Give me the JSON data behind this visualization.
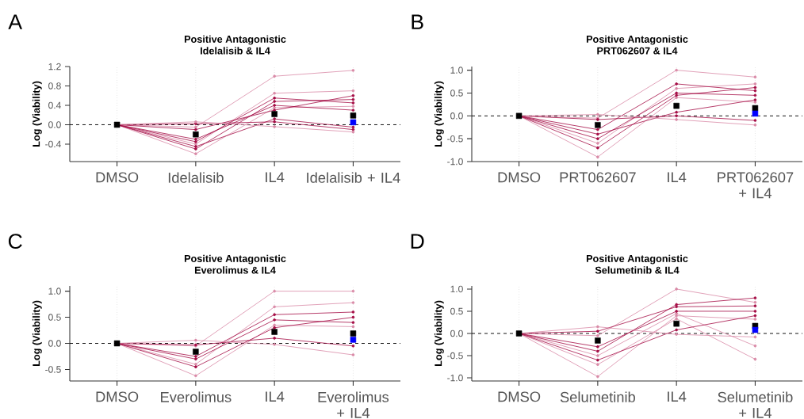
{
  "chart_data": [
    {
      "type": "line",
      "title": "Positive Antagonistic",
      "subtitle": "Idelalisib & IL4",
      "ylabel": "Log (Viability)",
      "annotations": [
        "A"
      ],
      "categories": [
        "DMSO",
        "Idelalisib",
        "IL4",
        "Idelalisib + IL4"
      ],
      "ylim": [
        -0.76,
        1.2
      ],
      "yticks": [
        {
          "value": -0.4,
          "label": "-0.4"
        },
        {
          "value": 0,
          "label": "0.0"
        },
        {
          "value": 0.4,
          "label": "0.4"
        },
        {
          "value": 0.8,
          "label": "0.8"
        },
        {
          "value": 1.2,
          "label": "1.2"
        }
      ],
      "grid": "x",
      "marker": "circle",
      "line_style": "solid",
      "ref_lines": [
        {
          "axis": "y",
          "value": 0,
          "color": "#000000",
          "line_style": "dashed"
        }
      ],
      "series": [
        {
          "color": "#d98aa7",
          "values": [
            0,
            -0.05,
            1.0,
            1.12
          ]
        },
        {
          "color": "#d98aa7",
          "values": [
            0,
            -0.6,
            0.35,
            0.38
          ]
        },
        {
          "color": "#d98aa7",
          "values": [
            0,
            -0.4,
            0.65,
            0.7
          ]
        },
        {
          "color": "#a50d45",
          "values": [
            0,
            -0.35,
            0.55,
            0.45
          ]
        },
        {
          "color": "#a50d45",
          "values": [
            0,
            -0.3,
            0.4,
            0.3
          ]
        },
        {
          "color": "#a50d45",
          "values": [
            0,
            -0.1,
            0.3,
            0.6
          ]
        },
        {
          "color": "#a50d45",
          "values": [
            0,
            -0.45,
            0.12,
            -0.05
          ]
        },
        {
          "color": "#a50d45",
          "values": [
            0,
            0.02,
            0.06,
            -0.1
          ]
        },
        {
          "color": "#a50d45",
          "values": [
            0,
            -0.5,
            0.48,
            0.52
          ]
        },
        {
          "color": "#d98aa7",
          "values": [
            0,
            0.06,
            -0.04,
            -0.15
          ]
        },
        {
          "type": "scatter",
          "marker": "square",
          "color": "#000000",
          "values": [
            0,
            -0.2,
            0.22,
            0.19
          ]
        },
        {
          "type": "scatter",
          "marker": "square",
          "color": "#0000ff",
          "values": [
            null,
            null,
            null,
            0.05
          ]
        }
      ]
    },
    {
      "type": "line",
      "title": "Positive Antagonistic",
      "subtitle": "PRT062607 & IL4",
      "ylabel": "Log (Viability)",
      "annotations": [
        "B"
      ],
      "categories": [
        "DMSO",
        "PRT062607",
        "IL4",
        "PRT062607 + IL4"
      ],
      "ylim": [
        -1.0,
        1.08
      ],
      "yticks": [
        {
          "value": -1,
          "label": "-1.0"
        },
        {
          "value": -0.5,
          "label": "-0.5"
        },
        {
          "value": 0,
          "label": "0.0"
        },
        {
          "value": 0.5,
          "label": "0.5"
        },
        {
          "value": 1,
          "label": "1.0"
        }
      ],
      "grid": "x",
      "marker": "circle",
      "line_style": "solid",
      "ref_lines": [
        {
          "axis": "y",
          "value": 0,
          "color": "#000000",
          "line_style": "dashed"
        }
      ],
      "series": [
        {
          "color": "#d98aa7",
          "values": [
            0,
            -0.05,
            1.0,
            0.85
          ]
        },
        {
          "color": "#d98aa7",
          "values": [
            0,
            -0.9,
            0.4,
            0.3
          ]
        },
        {
          "color": "#d98aa7",
          "values": [
            0,
            -0.6,
            0.6,
            0.7
          ]
        },
        {
          "color": "#a50d45",
          "values": [
            0,
            -0.5,
            0.5,
            0.45
          ]
        },
        {
          "color": "#a50d45",
          "values": [
            0,
            -0.4,
            0.08,
            0.35
          ]
        },
        {
          "color": "#a50d45",
          "values": [
            0,
            -0.3,
            0.7,
            0.55
          ]
        },
        {
          "color": "#a50d45",
          "values": [
            0,
            -0.08,
            0.0,
            -0.1
          ]
        },
        {
          "color": "#a50d45",
          "values": [
            0,
            -0.7,
            0.45,
            0.62
          ]
        },
        {
          "color": "#d98aa7",
          "values": [
            0,
            0.03,
            -0.08,
            -0.2
          ]
        },
        {
          "type": "scatter",
          "marker": "square",
          "color": "#000000",
          "values": [
            0,
            -0.2,
            0.22,
            0.17
          ]
        },
        {
          "type": "scatter",
          "marker": "square",
          "color": "#0000ff",
          "values": [
            null,
            null,
            null,
            0.05
          ]
        }
      ]
    },
    {
      "type": "line",
      "title": "Positive Antagonistic",
      "subtitle": "Everolimus & IL4",
      "ylabel": "Log (Viability)",
      "annotations": [
        "C"
      ],
      "categories": [
        "DMSO",
        "Everolimus",
        "IL4",
        "Everolimus + IL4"
      ],
      "ylim": [
        -0.72,
        1.1
      ],
      "yticks": [
        {
          "value": -0.5,
          "label": "-0.5"
        },
        {
          "value": 0,
          "label": "0.0"
        },
        {
          "value": 0.5,
          "label": "0.5"
        },
        {
          "value": 1,
          "label": "1.0"
        }
      ],
      "grid": "x",
      "marker": "circle",
      "line_style": "solid",
      "ref_lines": [
        {
          "axis": "y",
          "value": 0,
          "color": "#000000",
          "line_style": "dashed"
        }
      ],
      "series": [
        {
          "color": "#d98aa7",
          "values": [
            0,
            -0.05,
            1.0,
            1.0
          ]
        },
        {
          "color": "#d98aa7",
          "values": [
            0,
            -0.62,
            0.35,
            0.32
          ]
        },
        {
          "color": "#d98aa7",
          "values": [
            0,
            -0.4,
            0.7,
            0.78
          ]
        },
        {
          "color": "#a50d45",
          "values": [
            0,
            -0.3,
            0.45,
            0.4
          ]
        },
        {
          "color": "#a50d45",
          "values": [
            0,
            -0.25,
            0.55,
            0.6
          ]
        },
        {
          "color": "#a50d45",
          "values": [
            0,
            -0.03,
            0.1,
            -0.05
          ]
        },
        {
          "color": "#a50d45",
          "values": [
            0,
            -0.45,
            0.3,
            0.5
          ]
        },
        {
          "color": "#d98aa7",
          "values": [
            0,
            0.06,
            -0.02,
            -0.22
          ]
        },
        {
          "type": "scatter",
          "marker": "square",
          "color": "#000000",
          "values": [
            0,
            -0.16,
            0.22,
            0.19
          ]
        },
        {
          "type": "scatter",
          "marker": "square",
          "color": "#0000ff",
          "values": [
            null,
            null,
            null,
            0.07
          ]
        }
      ]
    },
    {
      "type": "line",
      "title": "Positive Antagonistic",
      "subtitle": "Selumetinib & IL4",
      "ylabel": "Log (Viability)",
      "annotations": [
        "D"
      ],
      "categories": [
        "DMSO",
        "Selumetinib",
        "IL4",
        "Selumetinib + IL4"
      ],
      "ylim": [
        -1.07,
        1.07
      ],
      "yticks": [
        {
          "value": -1,
          "label": "-1.0"
        },
        {
          "value": -0.5,
          "label": "-0.5"
        },
        {
          "value": 0,
          "label": "0.0"
        },
        {
          "value": 0.5,
          "label": "0.5"
        },
        {
          "value": 1,
          "label": "1.0"
        }
      ],
      "grid": "x",
      "marker": "circle",
      "line_style": "solid",
      "ref_lines": [
        {
          "axis": "y",
          "value": 0,
          "color": "#000000",
          "line_style": "dashed"
        }
      ],
      "series": [
        {
          "color": "#d98aa7",
          "values": [
            0,
            -0.05,
            1.0,
            0.7
          ]
        },
        {
          "color": "#d98aa7",
          "values": [
            0,
            -0.97,
            0.4,
            0.32
          ]
        },
        {
          "color": "#d98aa7",
          "values": [
            0,
            -0.7,
            0.33,
            -0.58
          ]
        },
        {
          "color": "#d98aa7",
          "values": [
            0,
            -0.5,
            0.45,
            -0.28
          ]
        },
        {
          "color": "#a50d45",
          "values": [
            0,
            -0.4,
            0.65,
            0.8
          ]
        },
        {
          "color": "#a50d45",
          "values": [
            0,
            -0.3,
            0.5,
            0.5
          ]
        },
        {
          "color": "#a50d45",
          "values": [
            0,
            -0.6,
            0.08,
            0.4
          ]
        },
        {
          "color": "#a50d45",
          "values": [
            0,
            0.05,
            0.6,
            0.62
          ]
        },
        {
          "color": "#d98aa7",
          "values": [
            0,
            0.15,
            -0.02,
            -0.08
          ]
        },
        {
          "type": "scatter",
          "marker": "square",
          "color": "#000000",
          "values": [
            0,
            -0.16,
            0.22,
            0.17
          ]
        },
        {
          "type": "scatter",
          "marker": "square",
          "color": "#0000ff",
          "values": [
            null,
            null,
            null,
            0.08
          ]
        }
      ]
    }
  ]
}
